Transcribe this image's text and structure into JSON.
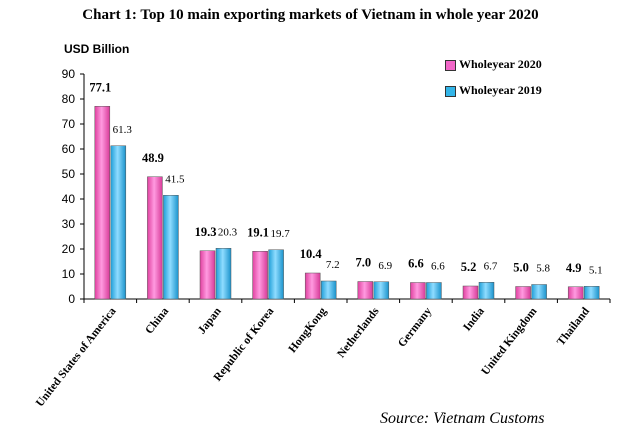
{
  "chart_data": {
    "type": "bar",
    "title": "Chart 1: Top 10 main exporting markets of Vietnam in whole year  2020",
    "ylabel": "USD Billion",
    "xlabel": "",
    "ylim": [
      0,
      90
    ],
    "yticks": [
      0,
      10,
      20,
      30,
      40,
      50,
      60,
      70,
      80,
      90
    ],
    "categories": [
      "United States of America",
      "China",
      "Japan",
      "Republic of Korea",
      "HongKong",
      "Netherlands",
      "Germany",
      "India",
      "United Kingdom",
      "Thailand"
    ],
    "series": [
      {
        "name": "Wholeyear 2020",
        "values": [
          77.1,
          48.9,
          19.3,
          19.1,
          10.4,
          7.0,
          6.6,
          5.2,
          5.0,
          4.9
        ],
        "labels": [
          "77.1",
          "48.9",
          "19.3",
          "19.1",
          "10.4",
          "7.0",
          "6.6",
          "5.2",
          "5.0",
          "4.9"
        ],
        "color": "#f266c8"
      },
      {
        "name": "Wholeyear 2019",
        "values": [
          61.3,
          41.5,
          20.3,
          19.7,
          7.2,
          6.9,
          6.6,
          6.7,
          5.8,
          5.1
        ],
        "labels": [
          "61.3",
          "41.5",
          "20.3",
          "19.7",
          "7.2",
          "6.9",
          "6.6",
          "6.7",
          "5.8",
          "5.1"
        ],
        "color": "#33b5e8"
      }
    ],
    "legend_position": "top-right",
    "grid": false
  },
  "source": "Source: Vietnam Customs"
}
